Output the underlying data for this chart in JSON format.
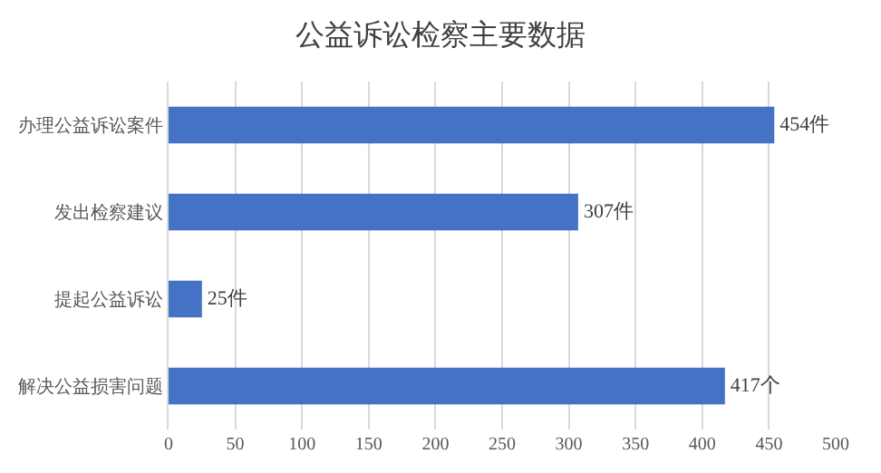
{
  "chart_data": {
    "type": "bar",
    "orientation": "horizontal",
    "title": "公益诉讼检察主要数据",
    "categories": [
      "办理公益诉讼案件",
      "发出检察建议",
      "提起公益诉讼",
      "解决公益损害问题"
    ],
    "values": [
      454,
      307,
      25,
      417
    ],
    "value_labels": [
      "454件",
      "307件",
      "25件",
      "417个"
    ],
    "color": "#4472c4",
    "xlim": [
      0,
      500
    ],
    "xticks": [
      0,
      50,
      100,
      150,
      200,
      250,
      300,
      350,
      400,
      450,
      500
    ],
    "grid": "x"
  }
}
